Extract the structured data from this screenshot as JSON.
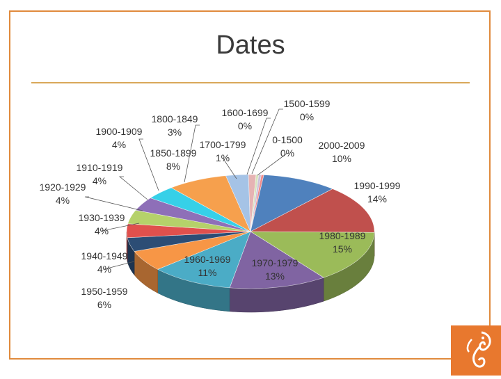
{
  "slide": {
    "title": "Dates"
  },
  "colors": {
    "frame": "#e08a3c",
    "rule": "#d9a85a",
    "logo": "#e8782e"
  },
  "chart_data": {
    "type": "pie",
    "title": "",
    "style": "3d",
    "slices": [
      {
        "label": "0-1500",
        "value": 0,
        "display": "0%",
        "color": "#f08b8b"
      },
      {
        "label": "2000-2009",
        "value": 10,
        "display": "10%",
        "color": "#4f81bd"
      },
      {
        "label": "1990-1999",
        "value": 14,
        "display": "14%",
        "color": "#c0504d"
      },
      {
        "label": "1980-1989",
        "value": 15,
        "display": "15%",
        "color": "#9bbb59"
      },
      {
        "label": "1970-1979",
        "value": 13,
        "display": "13%",
        "color": "#8064a2"
      },
      {
        "label": "1960-1969",
        "value": 11,
        "display": "11%",
        "color": "#4bacc6"
      },
      {
        "label": "1950-1959",
        "value": 6,
        "display": "6%",
        "color": "#f79646"
      },
      {
        "label": "1940-1949",
        "value": 4,
        "display": "4%",
        "color": "#2c4d75"
      },
      {
        "label": "1930-1939",
        "value": 4,
        "display": "4%",
        "color": "#e0504d"
      },
      {
        "label": "1920-1929",
        "value": 4,
        "display": "4%",
        "color": "#b5d16a"
      },
      {
        "label": "1910-1919",
        "value": 4,
        "display": "4%",
        "color": "#8e6fb8"
      },
      {
        "label": "1900-1909",
        "value": 4,
        "display": "4%",
        "color": "#36d0e8"
      },
      {
        "label": "1850-1899",
        "value": 8,
        "display": "8%",
        "color": "#f6a04d"
      },
      {
        "label": "1800-1849",
        "value": 3,
        "display": "3%",
        "color": "#a5c3e6"
      },
      {
        "label": "1700-1799",
        "value": 1,
        "display": "1%",
        "color": "#e6b3b3"
      },
      {
        "label": "1600-1699",
        "value": 0,
        "display": "0%",
        "color": "#d7e4bd"
      },
      {
        "label": "1500-1599",
        "value": 0,
        "display": "0%",
        "color": "#ccc1da"
      }
    ]
  }
}
